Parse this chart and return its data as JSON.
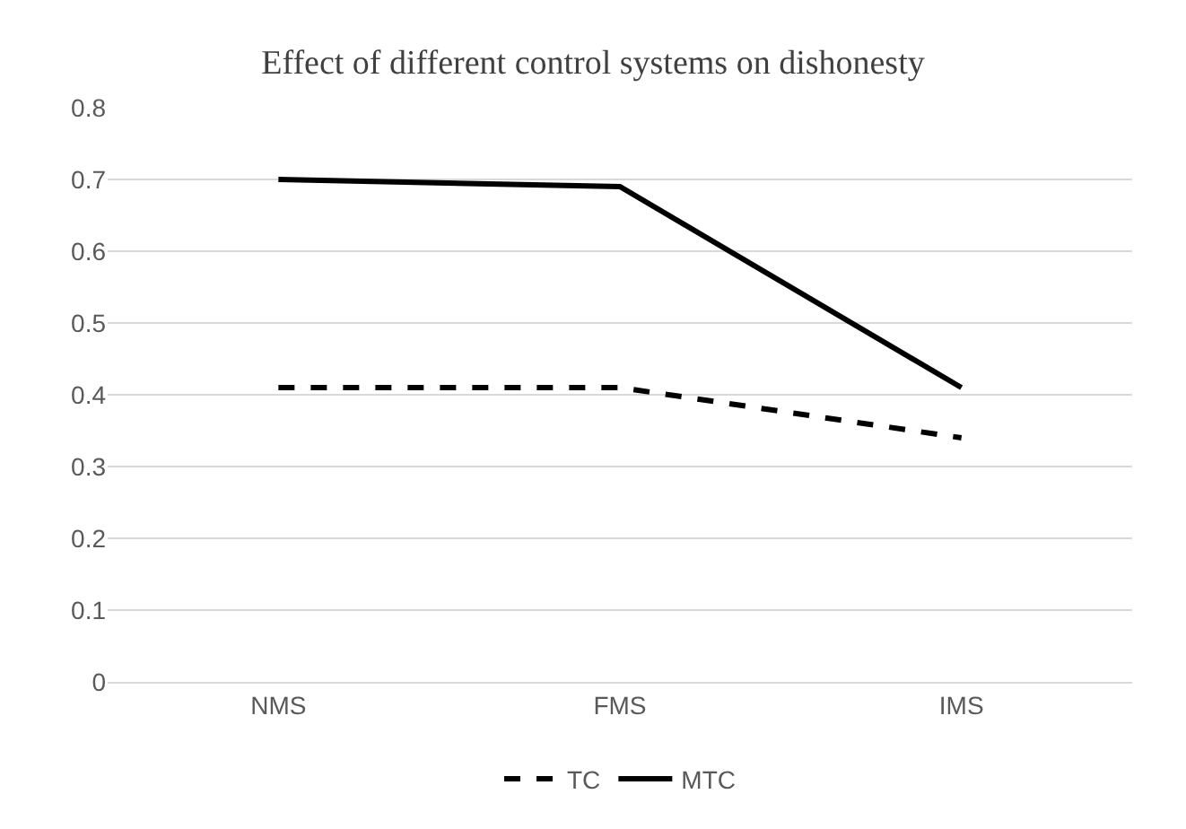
{
  "chart_data": {
    "type": "line",
    "title": "Effect of different control systems on dishonesty",
    "categories": [
      "NMS",
      "FMS",
      "IMS"
    ],
    "series": [
      {
        "name": "TC",
        "color": "#000000",
        "line_style": "dashed",
        "values": [
          0.41,
          0.41,
          0.34
        ]
      },
      {
        "name": "MTC",
        "color": "#000000",
        "line_style": "solid",
        "values": [
          0.7,
          0.69,
          0.41
        ]
      }
    ],
    "ylim": [
      0,
      0.8
    ],
    "yticks": [
      0,
      0.1,
      0.2,
      0.3,
      0.4,
      0.5,
      0.6,
      0.7,
      0.8
    ],
    "grid": "y",
    "legend": "bottom",
    "marker": "none"
  }
}
